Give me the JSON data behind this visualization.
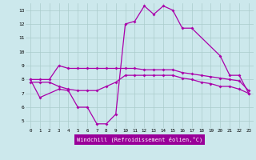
{
  "xlabel": "Windchill (Refroidissement éolien,°C)",
  "background_color": "#cce8ec",
  "grid_color": "#aacccc",
  "line_color": "#aa00aa",
  "xlabel_bg": "#990099",
  "ylim": [
    4.5,
    13.5
  ],
  "xlim": [
    0,
    23
  ],
  "yticks": [
    5,
    6,
    7,
    8,
    9,
    10,
    11,
    12,
    13
  ],
  "x_ticks": [
    0,
    1,
    2,
    3,
    4,
    5,
    6,
    7,
    8,
    9,
    10,
    11,
    12,
    13,
    14,
    15,
    16,
    17,
    18,
    19,
    20,
    21,
    22,
    23
  ],
  "line1_x": [
    0,
    1,
    3,
    4,
    5,
    6,
    7,
    8,
    9,
    10,
    11,
    12,
    13,
    14,
    15,
    16,
    17,
    20,
    21,
    22,
    23
  ],
  "line1_y": [
    8.0,
    6.7,
    7.3,
    7.2,
    6.0,
    6.0,
    4.8,
    4.8,
    5.5,
    12.0,
    12.2,
    13.3,
    12.7,
    13.3,
    13.0,
    11.7,
    11.7,
    9.7,
    8.3,
    8.3,
    7.0
  ],
  "line2_x": [
    0,
    1,
    2,
    3,
    4,
    5,
    6,
    7,
    8,
    9,
    10,
    11,
    12,
    13,
    14,
    15,
    16,
    17,
    18,
    19,
    20,
    21,
    22,
    23
  ],
  "line2_y": [
    8.0,
    8.0,
    8.0,
    9.0,
    8.8,
    8.8,
    8.8,
    8.8,
    8.8,
    8.8,
    8.8,
    8.8,
    8.7,
    8.7,
    8.7,
    8.7,
    8.5,
    8.4,
    8.3,
    8.2,
    8.1,
    8.0,
    7.9,
    7.2
  ],
  "line3_x": [
    0,
    1,
    2,
    3,
    4,
    5,
    6,
    7,
    8,
    9,
    10,
    11,
    12,
    13,
    14,
    15,
    16,
    17,
    18,
    19,
    20,
    21,
    22,
    23
  ],
  "line3_y": [
    7.8,
    7.8,
    7.8,
    7.5,
    7.3,
    7.2,
    7.2,
    7.2,
    7.5,
    7.8,
    8.3,
    8.3,
    8.3,
    8.3,
    8.3,
    8.3,
    8.1,
    8.0,
    7.8,
    7.7,
    7.5,
    7.5,
    7.3,
    7.0
  ]
}
